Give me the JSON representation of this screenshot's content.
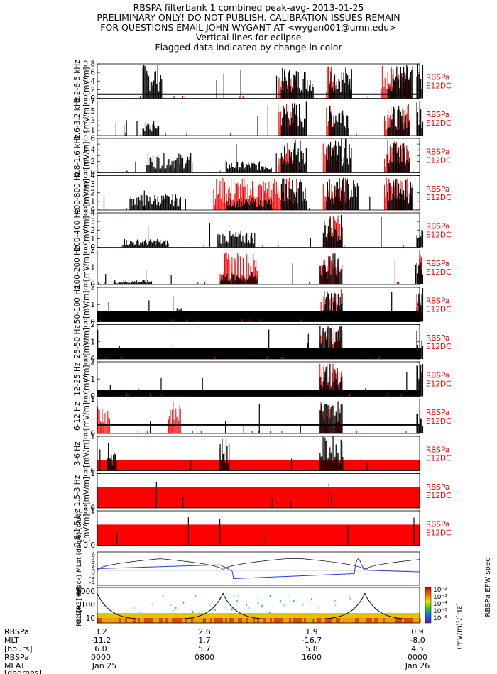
{
  "header": {
    "lines": [
      "RBSPA filterbank 1 combined peak-avg- 2013-01-25",
      "PRELIMINARY ONLY! DO NOT PUBLISH. CALIBRATION ISSUES REMAIN",
      "FOR QUESTIONS EMAIL JOHN WYGANT AT <wygan001@umn.edu>",
      "Vertical lines for eclipse",
      "Flagged data indicated by change in color"
    ]
  },
  "right_label": [
    "RBSPa",
    "E12DC"
  ],
  "colors": {
    "data": "#000000",
    "flagged": "#ff0000",
    "trace": "#2a3bd6"
  },
  "chart_data": [
    {
      "type": "bar",
      "band": "3.2-6.5",
      "band_unit": "kHz",
      "ylabel": "[mV/m]",
      "yticks": [
        "0.8",
        "0.6",
        "0.4",
        "0.2",
        "0.0"
      ],
      "ylim": [
        0,
        0.85
      ],
      "baseline": 0.1,
      "bursts": [
        [
          0.14,
          0.06,
          0.85
        ],
        [
          0.57,
          0.1,
          0.75
        ],
        [
          0.72,
          0.07,
          0.8
        ],
        [
          0.9,
          0.08,
          0.85
        ],
        [
          0.99,
          0.02,
          0.85
        ]
      ],
      "red": [
        [
          0.56,
          0.06
        ],
        [
          0.71,
          0.03
        ],
        [
          0.88,
          0.09
        ]
      ]
    },
    {
      "type": "bar",
      "band": "1.6-3.2",
      "band_unit": "kHz",
      "ylabel": "[mV/m]",
      "yticks": [
        "0.7",
        "0.6",
        "0.5",
        "0.4",
        "0.3",
        "0.2",
        "0.1",
        "0.0"
      ],
      "ylim": [
        0,
        0.7
      ],
      "baseline": 0.0,
      "bursts": [
        [
          0.14,
          0.05,
          0.3
        ],
        [
          0.57,
          0.08,
          0.7
        ],
        [
          0.72,
          0.06,
          0.7
        ],
        [
          0.9,
          0.07,
          0.6
        ],
        [
          0.99,
          0.02,
          0.7
        ]
      ],
      "red": [
        [
          0.56,
          0.06
        ],
        [
          0.71,
          0.03
        ],
        [
          0.89,
          0.08
        ]
      ]
    },
    {
      "type": "bar",
      "band": "0.8-1.6",
      "band_unit": "kHz",
      "ylabel": "[mV/m]",
      "yticks": [
        "0.6",
        "0.5",
        "0.4",
        "0.3",
        "0.2",
        "0.1",
        "0.0"
      ],
      "ylim": [
        0,
        0.6
      ],
      "baseline": 0.0,
      "bursts": [
        [
          0.15,
          0.14,
          0.35
        ],
        [
          0.4,
          0.14,
          0.2
        ],
        [
          0.57,
          0.08,
          0.6
        ],
        [
          0.71,
          0.08,
          0.6
        ],
        [
          0.9,
          0.07,
          0.6
        ]
      ],
      "red": [
        [
          0.56,
          0.06
        ],
        [
          0.7,
          0.05
        ],
        [
          0.89,
          0.08
        ]
      ]
    },
    {
      "type": "bar",
      "band": "400-800",
      "band_unit": "Hz",
      "ylabel": "[mV/m]",
      "yticks": [
        "0.4",
        "0.3",
        "0.2",
        "0.1",
        "0.0"
      ],
      "ylim": [
        0,
        0.42
      ],
      "baseline": 0.0,
      "bursts": [
        [
          0.1,
          0.16,
          0.2
        ],
        [
          0.4,
          0.14,
          0.15
        ],
        [
          0.57,
          0.08,
          0.4
        ],
        [
          0.71,
          0.1,
          0.4
        ],
        [
          0.9,
          0.08,
          0.4
        ]
      ],
      "red": [
        [
          0.36,
          0.2
        ],
        [
          0.56,
          0.06
        ],
        [
          0.7,
          0.08
        ],
        [
          0.89,
          0.08
        ]
      ]
    },
    {
      "type": "bar",
      "band": "200-400",
      "band_unit": "Hz",
      "ylabel": "[mV/m]",
      "yticks": [
        "0.4",
        "0.3",
        "0.2",
        "0.1",
        "0.0"
      ],
      "ylim": [
        0,
        0.42
      ],
      "baseline": 0.0,
      "bursts": [
        [
          0.08,
          0.14,
          0.1
        ],
        [
          0.37,
          0.12,
          0.2
        ],
        [
          0.7,
          0.06,
          0.4
        ],
        [
          0.99,
          0.02,
          0.3
        ]
      ],
      "red": [
        [
          0.7,
          0.06
        ]
      ]
    },
    {
      "type": "bar",
      "band": "100-200",
      "band_unit": "Hz",
      "ylabel": "[mV/m]",
      "yticks": [
        "0.2",
        "0.1",
        "0.0"
      ],
      "ylim": [
        0,
        0.22
      ],
      "baseline": 0.0,
      "bursts": [
        [
          0.05,
          0.12,
          0.03
        ],
        [
          0.38,
          0.12,
          0.08
        ],
        [
          0.69,
          0.07,
          0.2
        ],
        [
          0.99,
          0.02,
          0.2
        ]
      ],
      "red": [
        [
          0.38,
          0.12
        ],
        [
          0.69,
          0.06
        ],
        [
          0.99,
          0.02
        ]
      ]
    },
    {
      "type": "bar",
      "band": "50-100",
      "band_unit": "Hz",
      "ylabel": "[mV/m]",
      "yticks": [
        "0.2",
        "0.1",
        "0.0"
      ],
      "ylim": [
        0,
        0.22
      ],
      "baseline": 0.07,
      "bursts": [
        [
          0.08,
          0.05,
          0.02
        ],
        [
          0.24,
          0.03,
          0.09
        ],
        [
          0.38,
          0.07,
          0.02
        ],
        [
          0.7,
          0.06,
          0.22
        ],
        [
          0.99,
          0.02,
          0.22
        ]
      ],
      "red": [
        [
          0.69,
          0.07
        ],
        [
          0.99,
          0.02
        ]
      ]
    },
    {
      "type": "bar",
      "band": "25-50",
      "band_unit": "Hz",
      "ylabel": "[mV/m]",
      "yticks": [
        "0.2",
        "0.1",
        "0.0"
      ],
      "ylim": [
        0,
        0.22
      ],
      "baseline": 0.07,
      "bursts": [
        [
          0.23,
          0.03,
          0.08
        ],
        [
          0.69,
          0.07,
          0.22
        ],
        [
          0.99,
          0.02,
          0.22
        ]
      ],
      "red": [
        [
          0.69,
          0.07
        ]
      ]
    },
    {
      "type": "bar",
      "band": "12-25",
      "band_unit": "Hz",
      "ylabel": "[mV/m]",
      "yticks": [
        "0.2",
        "0.1",
        "0.0"
      ],
      "ylim": [
        0,
        0.22
      ],
      "baseline": 0.04,
      "bursts": [
        [
          0.69,
          0.07,
          0.22
        ],
        [
          0.99,
          0.02,
          0.22
        ]
      ],
      "red": [
        [
          0.69,
          0.07
        ]
      ]
    },
    {
      "type": "bar",
      "band": "6-12",
      "band_unit": "Hz",
      "ylabel": "[mV/m]",
      "yticks": [
        "0.1",
        "0.0"
      ],
      "ylim": [
        0,
        0.12
      ],
      "baseline": 0.03,
      "bursts": [
        [
          0.69,
          0.07,
          0.12
        ],
        [
          0.99,
          0.02,
          0.12
        ]
      ],
      "red": [
        [
          0.0,
          0.04
        ],
        [
          0.22,
          0.04
        ],
        [
          0.69,
          0.07
        ]
      ]
    },
    {
      "type": "bar",
      "band": "3-6",
      "band_unit": "Hz",
      "ylabel": "[mV/m]",
      "yticks": [
        "0.1",
        "0.0"
      ],
      "ylim": [
        0,
        0.12
      ],
      "baseline": 0.0,
      "bursts": [
        [
          0.03,
          0.03,
          0.1
        ],
        [
          0.38,
          0.03,
          0.12
        ],
        [
          0.69,
          0.07,
          0.12
        ]
      ],
      "red": [
        [
          0.0,
          1.0
        ]
      ],
      "redlevel": 0.3
    },
    {
      "type": "bar",
      "band": "1.5-3",
      "band_unit": "Hz",
      "ylabel": "[mV/m]",
      "yticks": [
        "0.1",
        "0.0"
      ],
      "ylim": [
        0,
        0.12
      ],
      "baseline": 0.0,
      "bursts": [],
      "red": [
        [
          0.0,
          1.0
        ]
      ],
      "redlevel": 0.6
    },
    {
      "type": "bar",
      "band": "0.8-1.5",
      "band_unit": "Hz",
      "ylabel": "[mV/m]",
      "yticks": [
        "0.1",
        "0.0"
      ],
      "ylim": [
        0,
        0.12
      ],
      "baseline": 0.0,
      "bursts": [],
      "red": [
        [
          0.0,
          1.0
        ]
      ],
      "redlevel": 0.6
    },
    {
      "type": "line",
      "ylabel": "Rad [RE] (black) MLat (deg/6) (blue)",
      "yticks": [
        "6",
        "4",
        "2",
        "0",
        "-2",
        "-4"
      ],
      "ylim": [
        -5,
        7
      ],
      "black_minima": [
        0.0,
        0.39,
        0.83
      ],
      "blue_peaks": [
        0.38,
        0.81
      ]
    },
    {
      "type": "heatmap",
      "ylabel": "E12AC [Hz]",
      "yticks": [
        "1000",
        "100",
        "10"
      ],
      "cbar_ticks": [
        "10⁻²",
        "10⁻³",
        "10⁻⁴",
        "10⁻⁵",
        "10⁻⁶"
      ],
      "cbar_label": "(mV/m)²/[Hz]",
      "side_label": "RBSPa EFW spec"
    }
  ],
  "xaxis": {
    "row_labels": [
      "RBSPa",
      "MLT",
      "[hours]",
      "RBSPa",
      "MLAT",
      "[degrees]"
    ],
    "columns": [
      {
        "tick": "3.2",
        "mlt": "-11.2",
        "mlat": "6.0",
        "time": "0000",
        "date": "Jan 25"
      },
      {
        "tick": "2.6",
        "mlt": "1.7",
        "mlat": "5.7",
        "time": "0800",
        "date": ""
      },
      {
        "tick": "1.9",
        "mlt": "-16.7",
        "mlat": "5.8",
        "time": "1600",
        "date": ""
      },
      {
        "tick": "0.9",
        "mlt": "-8.0",
        "mlat": "4.5",
        "time": "0000",
        "date": "Jan 26"
      }
    ]
  }
}
